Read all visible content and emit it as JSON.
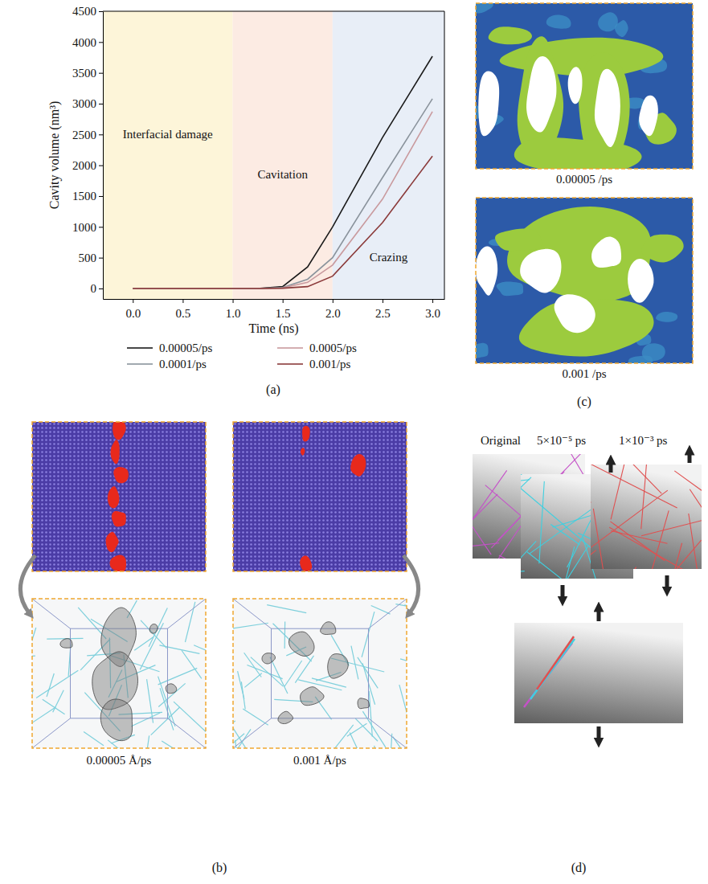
{
  "chart_data": {
    "type": "line",
    "xlabel": "Time (ns)",
    "ylabel": "Cavity volume (nm³)",
    "x": [
      0,
      0.5,
      1.0,
      1.25,
      1.5,
      1.75,
      2.0,
      2.5,
      3.0
    ],
    "series": [
      {
        "name": "0.00005/ps",
        "color": "#1a1a1a",
        "values": [
          0,
          0,
          0,
          0,
          30,
          350,
          1000,
          2450,
          3770
        ]
      },
      {
        "name": "0.0001/ps",
        "color": "#8a939c",
        "values": [
          0,
          0,
          0,
          0,
          15,
          150,
          500,
          1800,
          3080
        ]
      },
      {
        "name": "0.0005/ps",
        "color": "#c99a9e",
        "values": [
          0,
          0,
          0,
          0,
          10,
          100,
          380,
          1450,
          2870
        ]
      },
      {
        "name": "0.001/ps",
        "color": "#8b3a3a",
        "values": [
          0,
          0,
          0,
          0,
          5,
          30,
          200,
          1070,
          2150
        ]
      }
    ],
    "xlim": [
      -0.3,
      3.12
    ],
    "xticks": [
      {
        "value": 0,
        "label": "0.0"
      },
      {
        "value": 0.5,
        "label": "0.5"
      },
      {
        "value": 1,
        "label": "1.0"
      },
      {
        "value": 1.5,
        "label": "1.5"
      },
      {
        "value": 2,
        "label": "2.0"
      },
      {
        "value": 2.5,
        "label": "2.5"
      },
      {
        "value": 3,
        "label": "3.0"
      }
    ],
    "ylim": [
      -170,
      4500
    ],
    "yticks": [
      0,
      500,
      1000,
      1500,
      2000,
      2500,
      3000,
      3500,
      4000,
      4500
    ],
    "grid": false,
    "legend": "bottom",
    "regions": [
      {
        "label": "Interfacial damage",
        "from": -0.3,
        "to": 1,
        "color": "#fdf5d9"
      },
      {
        "label": "Cavitation",
        "from": 1,
        "to": 2,
        "color": "#fcebe3"
      },
      {
        "label": "Crazing",
        "from": 2,
        "to": 3.12,
        "color": "#e8eef7"
      }
    ]
  },
  "figure": {
    "panel_labels": [
      "(a)",
      "(b)",
      "(c)",
      "(d)"
    ],
    "panel_b": {
      "captions": [
        "0.00005 Å/ps",
        "0.001 Å/ps"
      ]
    },
    "panel_c": {
      "captions": [
        "0.00005 /ps",
        "0.001 /ps"
      ]
    },
    "panel_d": {
      "sheet_labels": [
        "Original",
        "5×10⁻⁵ ps",
        "1×10⁻³ ps"
      ]
    }
  }
}
